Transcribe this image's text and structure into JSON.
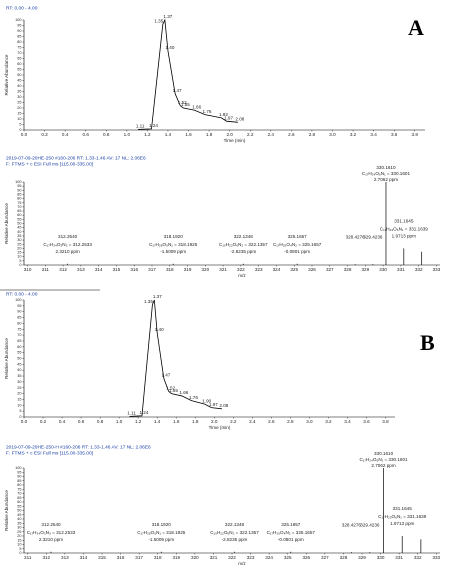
{
  "chart_data": [
    {
      "type": "chromatogram",
      "header": [
        "RT: 0.00 - 4.00"
      ],
      "panel_label": "A",
      "x": [
        1.11,
        1.24,
        1.35,
        1.37,
        1.4,
        1.47,
        1.52,
        1.55,
        1.66,
        1.76,
        1.92,
        1.97,
        2.08
      ],
      "values": [
        0.5,
        1,
        96,
        100,
        72,
        33,
        22,
        20,
        18,
        14,
        11,
        8,
        7
      ],
      "point_labels": [
        "1.11",
        "1.24",
        "1.35",
        "1.37",
        "1.40",
        "1.47",
        "1.52",
        "1.55",
        "1.66",
        "1.76",
        "1.92",
        "1.97",
        "2.08"
      ],
      "xlim": [
        0,
        3.9
      ],
      "ylim": [
        0,
        100
      ],
      "xticks": [
        {
          "value": 0,
          "label": "0.0"
        },
        0.2,
        0.4,
        0.6,
        0.8,
        {
          "value": 1,
          "label": "1.0"
        },
        1.2,
        1.4,
        1.6,
        1.8,
        {
          "value": 2,
          "label": "2.0"
        },
        2.2,
        2.4,
        2.6,
        2.8,
        {
          "value": 3,
          "label": "3.0"
        },
        3.2,
        3.4,
        3.6,
        3.8
      ],
      "yticks": [
        0,
        5,
        10,
        15,
        20,
        25,
        30,
        35,
        40,
        45,
        50,
        55,
        60,
        65,
        70,
        75,
        80,
        85,
        90,
        95,
        100
      ],
      "xlabel": "Time (min)",
      "ylabel": "Relative Abundance",
      "color": "#000000",
      "label_color": "#2e8b2e"
    },
    {
      "type": "spectrum",
      "header": [
        "2019-07-09-20HE-250 #160-206  RT: 1.33-1.46  AV: 17  NL: 2.06E6",
        "F: FTMS + c ESI Full ms [115.00-335.00]"
      ],
      "x": [
        312.254,
        318.192,
        322.1348,
        325.1657,
        328.4276,
        329.4236,
        330.161,
        331.1645,
        332.17
      ],
      "values": [
        1.5,
        1.5,
        1.5,
        1.5,
        1,
        1,
        100,
        20,
        16
      ],
      "point_labels": [
        "312.2540",
        "318.1920",
        "322.1348",
        "325.1657",
        "328.4276",
        "329.4236",
        "330.1610",
        "331.1645",
        null
      ],
      "formulas": [
        "C₁₇H₃₄O₃N₃ = 312.2533",
        "C₁₇H₂₈O₅N₁ = 318.1925",
        "C₁₅H₂₂O₆N₂ = 322.1357",
        "C₁₇H₂₅O₄N₂ = 325.1657",
        null,
        null,
        "C₁₇H₂₄O₆N₁ = 330.1601",
        "C₁₇H₂₃O₆N₁ = 331.1639",
        null
      ],
      "ppm": [
        "2.3210 ppm",
        "-1.5009 ppm",
        "-2.8235 ppm",
        "-0.0801 ppm",
        null,
        null,
        "2.7062 ppm",
        "1.9713 ppm",
        null
      ],
      "xlim": [
        309.8,
        333.2
      ],
      "ylim": [
        0,
        100
      ],
      "xticks": [
        310,
        311,
        312,
        313,
        314,
        315,
        316,
        317,
        318,
        319,
        320,
        321,
        322,
        323,
        324,
        325,
        326,
        327,
        328,
        329,
        330,
        331,
        332,
        333
      ],
      "yticks": [
        0,
        5,
        10,
        15,
        20,
        25,
        30,
        35,
        40,
        45,
        50,
        55,
        60,
        65,
        70,
        75,
        80,
        85,
        90,
        95,
        100
      ],
      "xlabel": "m/z",
      "ylabel": "Relative Abundance",
      "color": "#000000",
      "label_color": "#000000"
    },
    {
      "type": "chromatogram",
      "header": [
        "RT: 0.00 - 4.00"
      ],
      "panel_label": "B",
      "x": [
        1.11,
        1.24,
        1.35,
        1.37,
        1.4,
        1.47,
        1.52,
        1.55,
        1.66,
        1.76,
        1.9,
        1.97,
        2.08
      ],
      "values": [
        0.5,
        1,
        96,
        100,
        72,
        33,
        22,
        20,
        18,
        14,
        11,
        8,
        7
      ],
      "point_labels": [
        "1.11",
        "1.24",
        "1.35",
        "1.37",
        "1.40",
        "1.47",
        "1.52",
        "1.55",
        "1.66",
        "1.76",
        "1.90",
        "1.97",
        "2.08"
      ],
      "xlim": [
        0,
        3.9
      ],
      "ylim": [
        0,
        100
      ],
      "xticks": [
        {
          "value": 0,
          "label": "0.0"
        },
        0.2,
        0.4,
        0.6,
        0.8,
        {
          "value": 1,
          "label": "1.0"
        },
        1.2,
        1.4,
        1.6,
        1.8,
        {
          "value": 2,
          "label": "2.0"
        },
        2.2,
        2.4,
        2.6,
        2.8,
        {
          "value": 3,
          "label": "3.0"
        },
        3.2,
        3.4,
        3.6,
        3.8
      ],
      "yticks": [
        0,
        5,
        10,
        15,
        20,
        25,
        30,
        35,
        40,
        45,
        50,
        55,
        60,
        65,
        70,
        75,
        80,
        85,
        90,
        95,
        100
      ],
      "xlabel": "Time (min)",
      "ylabel": "Relative Abundance",
      "color": "#000000",
      "label_color": "#2e8b2e"
    },
    {
      "type": "spectrum",
      "header": [
        "2019-07-09-20HE-250-H #160-206  RT: 1.33-1.46  AV: 17  NL: 2.06E6",
        "F: FTMS + c ESI Full ms [115.00-335.00]"
      ],
      "x": [
        312.254,
        318.192,
        322.1348,
        325.1657,
        328.4276,
        329.4236,
        330.161,
        331.1645,
        332.17
      ],
      "values": [
        1.5,
        1.5,
        1.5,
        1.5,
        1,
        1,
        100,
        20,
        16
      ],
      "point_labels": [
        "312.2540",
        "318.1920",
        "322.1348",
        "325.1657",
        "328.4276",
        "329.4236",
        "330.1610",
        "331.1645",
        null
      ],
      "formulas": [
        "C₁₇H₃₄O₃N₃ = 312.2533",
        "C₁₇H₂₈O₅N₁ = 318.1925",
        "C₁₅H₂₂O₆N₂ = 322.1357",
        "C₁₇H₂₅O₄N₂ = 325.1657",
        null,
        null,
        "C₁₇H₂₄O₆N₁ = 330.1601",
        "C₁₇H₂₃O₆N₁ = 331.1639",
        null
      ],
      "ppm": [
        "2.3210 ppm",
        "-1.5009 ppm",
        "-2.8235 ppm",
        "-0.0801 ppm",
        null,
        null,
        "2.7062 ppm",
        "1.9713 ppm",
        null
      ],
      "xlim": [
        310.8,
        333.2
      ],
      "ylim": [
        0,
        100
      ],
      "xticks": [
        311,
        312,
        313,
        314,
        315,
        316,
        317,
        318,
        319,
        320,
        321,
        322,
        323,
        324,
        325,
        326,
        327,
        328,
        329,
        330,
        331,
        332,
        333
      ],
      "yticks": [
        0,
        5,
        10,
        15,
        20,
        25,
        30,
        35,
        40,
        45,
        50,
        55,
        60,
        65,
        70,
        75,
        80,
        85,
        90,
        95,
        100
      ],
      "xlabel": "m/z",
      "ylabel": "Relative Abundance",
      "color": "#000000",
      "label_color": "#000000"
    }
  ]
}
